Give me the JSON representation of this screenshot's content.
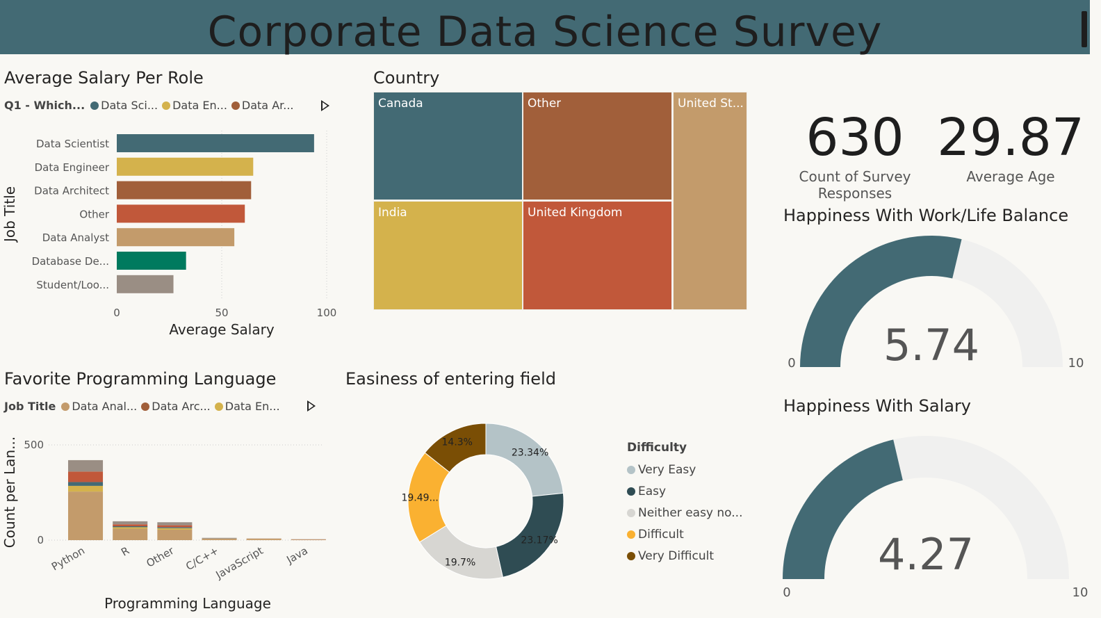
{
  "header": {
    "title": "Corporate Data Science Survey"
  },
  "salary_visual": {
    "title": "Average Salary Per Role",
    "legend_title": "Q1 - Which...",
    "legend": [
      {
        "label": "Data Sci...",
        "color": "#436a74"
      },
      {
        "label": "Data En...",
        "color": "#d4b24c"
      },
      {
        "label": "Data Ar...",
        "color": "#a15f3a"
      }
    ]
  },
  "country_visual": {
    "title": "Country"
  },
  "kpis": {
    "responses_value": "630",
    "responses_label_1": "Count of Survey",
    "responses_label_2": "Responses",
    "age_value": "29.87",
    "age_label": "Average Age"
  },
  "gauge_wlb": {
    "title": "Happiness With Work/Life Balance",
    "value": 5.74,
    "value_text": "5.74",
    "min_label": "0",
    "max_label": "10",
    "min": 0,
    "max": 10
  },
  "gauge_salary": {
    "title": "Happiness With Salary",
    "value": 4.27,
    "value_text": "4.27",
    "min_label": "0",
    "max_label": "10",
    "min": 0,
    "max": 10
  },
  "lang_visual": {
    "title": "Favorite Programming Language",
    "legend_title": "Job Title",
    "legend": [
      {
        "label": "Data Anal...",
        "color": "#c39b6b"
      },
      {
        "label": "Data Arc...",
        "color": "#a15f3a"
      },
      {
        "label": "Data En...",
        "color": "#d4b24c"
      }
    ]
  },
  "donut_visual": {
    "title": "Easiness of entering field",
    "legend_title": "Difficulty"
  },
  "chart_data": [
    {
      "type": "bar",
      "orientation": "horizontal",
      "title": "Average Salary Per Role",
      "xlabel": "Average Salary",
      "ylabel": "Job Title",
      "categories": [
        "Data Scientist",
        "Data Engineer",
        "Data Architect",
        "Other",
        "Data Analyst",
        "Database De...",
        "Student/Loo..."
      ],
      "values": [
        94,
        65,
        64,
        61,
        56,
        33,
        27
      ],
      "colors": [
        "#436a74",
        "#d4b24c",
        "#a15f3a",
        "#c1583a",
        "#c39b6b",
        "#007a5e",
        "#9a8e84"
      ],
      "xlim": [
        0,
        100
      ],
      "xticks": [
        "0",
        "50",
        "100"
      ],
      "grid": true
    },
    {
      "type": "treemap",
      "title": "Country",
      "items": [
        {
          "label": "Canada",
          "color": "#436a74"
        },
        {
          "label": "Other",
          "color": "#a15f3a"
        },
        {
          "label": "United St...",
          "color": "#c39b6b"
        },
        {
          "label": "India",
          "color": "#d4b24c"
        },
        {
          "label": "United Kingdom",
          "color": "#c1583a"
        }
      ]
    },
    {
      "type": "bar",
      "stacked": true,
      "title": "Favorite Programming Language",
      "xlabel": "Programming Language",
      "ylabel": "Count per Lan...",
      "categories": [
        "Python",
        "R",
        "Other",
        "C/C++",
        "JavaScript",
        "Java"
      ],
      "ylim": [
        0,
        500
      ],
      "yticks": [
        "0",
        "500"
      ],
      "series": [
        {
          "name": "Data Anal...",
          "color": "#c39b6b",
          "values": [
            255,
            60,
            55,
            7,
            6,
            3
          ]
        },
        {
          "name": "Data En...",
          "color": "#d4b24c",
          "values": [
            30,
            8,
            8,
            1,
            1,
            0
          ]
        },
        {
          "color": "#436a74",
          "values": [
            20,
            5,
            5,
            1,
            0,
            0
          ]
        },
        {
          "color": "#c1583a",
          "values": [
            55,
            10,
            10,
            1,
            1,
            1
          ]
        },
        {
          "color": "#9a8e84",
          "values": [
            60,
            16,
            16,
            2,
            1,
            1
          ]
        }
      ]
    },
    {
      "type": "pie",
      "donut": true,
      "title": "Easiness of entering field",
      "legend_title": "Difficulty",
      "slices": [
        {
          "label": "Very Easy",
          "value": 23.34,
          "display": "23.34%",
          "color": "#b4c3c7"
        },
        {
          "label": "Easy",
          "value": 23.17,
          "display": "23.17%",
          "color": "#2f4c53"
        },
        {
          "label": "Neither easy no...",
          "value": 19.7,
          "display": "19.7%",
          "color": "#d7d6d2"
        },
        {
          "label": "Difficult",
          "value": 19.49,
          "display": "19.49...",
          "color": "#fab131"
        },
        {
          "label": "Very Difficult",
          "value": 14.3,
          "display": "14.3%",
          "color": "#7a4e05"
        }
      ]
    }
  ]
}
